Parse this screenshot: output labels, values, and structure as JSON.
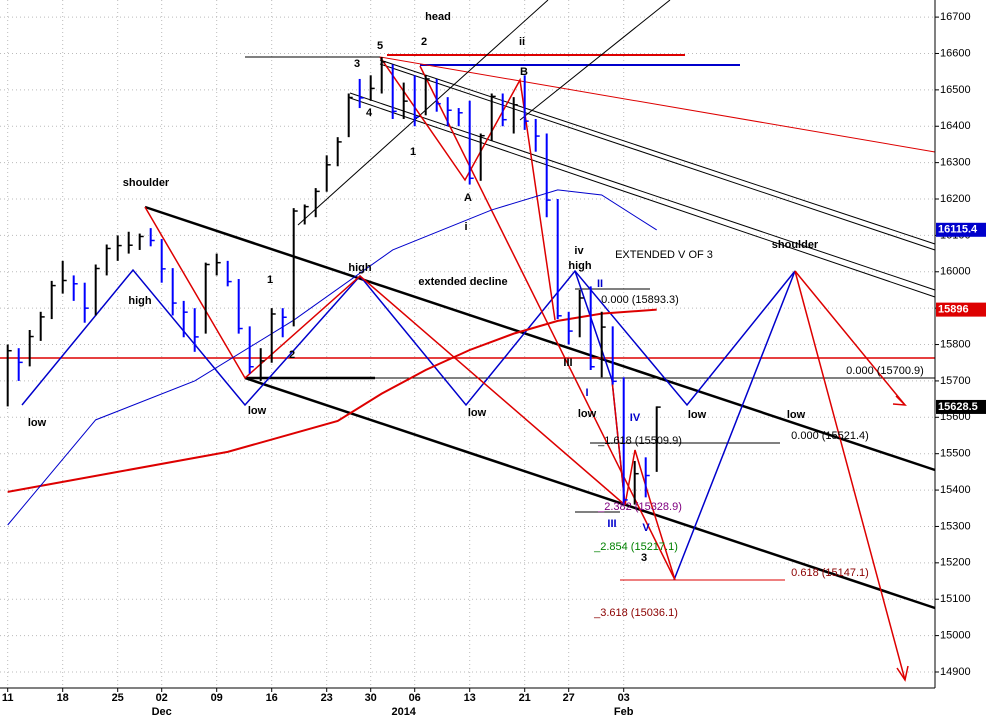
{
  "chart_data": {
    "type": "hlc",
    "xlim": [
      -0.7,
      84.3
    ],
    "ylim": [
      14823,
      16747
    ],
    "yticks": [
      16700,
      16600,
      16500,
      16400,
      16300,
      16200,
      16100,
      16000,
      15900,
      15800,
      15700,
      15600,
      15500,
      15400,
      15300,
      15200,
      15100,
      15000,
      14900
    ],
    "xticks": [
      {
        "value": 0,
        "label": "11"
      },
      {
        "value": 5,
        "label": "18"
      },
      {
        "value": 10,
        "label": "25"
      },
      {
        "value": 14,
        "label": "02"
      },
      {
        "value": 19,
        "label": "09"
      },
      {
        "value": 24,
        "label": "16"
      },
      {
        "value": 29,
        "label": "23"
      },
      {
        "value": 33,
        "label": "30"
      },
      {
        "value": 37,
        "label": "06"
      },
      {
        "value": 42,
        "label": "13"
      },
      {
        "value": 47,
        "label": "21"
      },
      {
        "value": 51,
        "label": "27"
      },
      {
        "value": 56,
        "label": "03"
      }
    ],
    "period_labels": [
      {
        "value": 14,
        "label": "Dec"
      },
      {
        "value": 36,
        "label": "2014"
      },
      {
        "value": 56,
        "label": "Feb"
      }
    ],
    "grid": true,
    "up_color": "#000000",
    "down_color": "#0000ff",
    "high": [
      15800,
      15790,
      15840,
      15890,
      15975,
      16030,
      15990,
      15970,
      16020,
      16075,
      16100,
      16110,
      16105,
      16120,
      16090,
      16010,
      15920,
      15900,
      16025,
      16050,
      16030,
      15980,
      15850,
      15790,
      15900,
      15900,
      16175,
      16185,
      16230,
      16320,
      16370,
      16490,
      16530,
      16540,
      16590,
      16570,
      16520,
      16540,
      16540,
      16530,
      16480,
      16450,
      16470,
      16380,
      16490,
      16490,
      16480,
      16540,
      16420,
      16380,
      16200,
      15890,
      15950,
      15960,
      15890,
      15850,
      15710,
      15480,
      15490,
      15630
    ],
    "low": [
      15630,
      15700,
      15740,
      15810,
      15870,
      15940,
      15920,
      15860,
      15880,
      15990,
      16030,
      16050,
      16060,
      16070,
      15970,
      15880,
      15820,
      15780,
      15830,
      15990,
      15960,
      15830,
      15720,
      15700,
      15750,
      15820,
      15850,
      16130,
      16150,
      16220,
      16290,
      16370,
      16450,
      16470,
      16490,
      16420,
      16420,
      16400,
      16430,
      16440,
      16400,
      16400,
      16240,
      16250,
      16360,
      16400,
      16380,
      16390,
      16330,
      16150,
      15870,
      15800,
      15820,
      15730,
      15710,
      15690,
      15360,
      15360,
      15380,
      15450
    ],
    "close": [
      15783,
      15751,
      15822,
      15876,
      15962,
      15976,
      15967,
      15900,
      16009,
      16064,
      16072,
      16073,
      16097,
      16086,
      16008,
      15914,
      15889,
      15821,
      16020,
      16025,
      15973,
      15844,
      15739,
      15755,
      15884,
      15875,
      16167,
      16179,
      16221,
      16294,
      16357,
      16479,
      16478,
      16504,
      16577,
      16441,
      16469,
      16425,
      16530,
      16462,
      16444,
      16437,
      16257,
      16374,
      16482,
      16418,
      16459,
      16414,
      16373,
      16197,
      15879,
      15837,
      15928,
      15739,
      15848,
      15699,
      15373,
      15445,
      15440,
      15628
    ],
    "moving_averages": [
      {
        "color": "#dd0000",
        "x": [
          0,
          10,
          20,
          30,
          34,
          38,
          42,
          46,
          50,
          54,
          59
        ],
        "values": [
          15395,
          15450,
          15505,
          15590,
          15665,
          15730,
          15785,
          15830,
          15865,
          15885,
          15896
        ]
      },
      {
        "color": "#0000cc",
        "x": [
          0,
          8,
          17,
          26,
          35,
          44,
          50,
          54,
          59
        ],
        "values": [
          15304,
          15593,
          15700,
          15867,
          16060,
          16170,
          16225,
          16211,
          16115
        ]
      }
    ],
    "price_tags": [
      {
        "value": 16115.4,
        "color": "#0000cc"
      },
      {
        "value": 15896,
        "color": "#dd0000"
      },
      {
        "value": 15628.5,
        "color": "#000000"
      }
    ],
    "annotations": [
      {
        "text": "head",
        "color": "#000"
      },
      {
        "text": "5",
        "color": "#000"
      },
      {
        "text": "2",
        "color": "#000"
      },
      {
        "text": "ii",
        "color": "#000"
      },
      {
        "text": "3",
        "color": "#000"
      },
      {
        "text": "B",
        "color": "#000"
      },
      {
        "text": "4",
        "color": "#000"
      },
      {
        "text": "1",
        "color": "#000"
      },
      {
        "text": "A",
        "color": "#000"
      },
      {
        "text": "i",
        "color": "#000"
      },
      {
        "text": "shoulder",
        "color": "#000"
      },
      {
        "text": "high",
        "color": "#000"
      },
      {
        "text": "low",
        "color": "#000"
      },
      {
        "text": "1",
        "color": "#000"
      },
      {
        "text": "2",
        "color": "#000"
      },
      {
        "text": "low",
        "color": "#000"
      },
      {
        "text": "high",
        "color": "#000"
      },
      {
        "text": "extended decline",
        "color": "#000"
      },
      {
        "text": "iv",
        "color": "#000"
      },
      {
        "text": "high",
        "color": "#000"
      },
      {
        "text": "EXTENDED V OF 3",
        "color": "#000"
      },
      {
        "text": "shoulder",
        "color": "#000"
      },
      {
        "text": "II",
        "color": "#0000cc"
      },
      {
        "text": "III",
        "color": "#000"
      },
      {
        "text": "I",
        "color": "#0000cc"
      },
      {
        "text": "low",
        "color": "#000"
      },
      {
        "text": "low",
        "color": "#000"
      },
      {
        "text": "IV",
        "color": "#0000cc"
      },
      {
        "text": "low",
        "color": "#000"
      },
      {
        "text": "low",
        "color": "#000"
      },
      {
        "text": "III",
        "color": "#0000cc"
      },
      {
        "text": "V",
        "color": "#0000cc"
      },
      {
        "text": "3",
        "color": "#000"
      },
      {
        "text": "0.000 (15893.3)",
        "color": "#000"
      },
      {
        "text": "0.000 (15700.9)",
        "color": "#000"
      },
      {
        "text": "0.000 (15521.4)",
        "color": "#000"
      },
      {
        "text": "_1.618 (15509.9)",
        "color": "#000"
      },
      {
        "text": "_2.382 (15328.9)",
        "color": "#800080"
      },
      {
        "text": "_2.854 (15217.1)",
        "color": "#008000"
      },
      {
        "text": "0.618 (15147.1)",
        "color": "#8b0000"
      },
      {
        "text": "_3.618 (15036.1)",
        "color": "#8b0000"
      }
    ]
  }
}
